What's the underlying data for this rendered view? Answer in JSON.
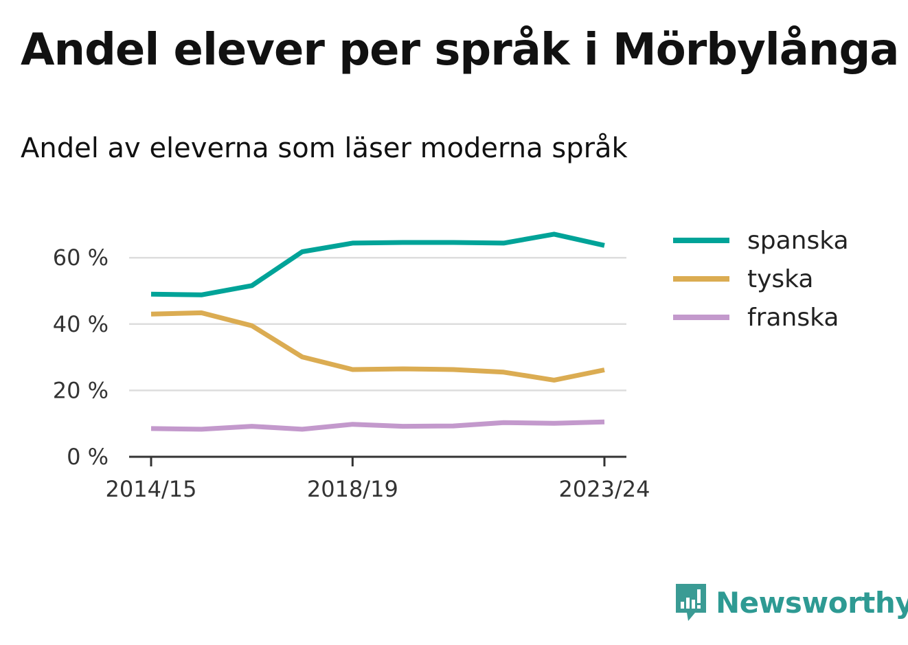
{
  "title": "Andel elever per språk i Mörbylånga",
  "subtitle": "Andel av eleverna som läser moderna språk",
  "brand": {
    "name": "Newsworthy",
    "color": "#3a9b94",
    "icon": "newsworthy-logo-icon"
  },
  "chart_data": {
    "type": "line",
    "categories": [
      "2014/15",
      "2015/16",
      "2016/17",
      "2017/18",
      "2018/19",
      "2019/20",
      "2020/21",
      "2021/22",
      "2022/23",
      "2023/24"
    ],
    "x_tick_labels": [
      "2014/15",
      "2018/19",
      "2023/24"
    ],
    "y_ticks": [
      0,
      20,
      40,
      60
    ],
    "y_tick_labels": [
      "0 %",
      "20 %",
      "40 %",
      "60 %"
    ],
    "ylim": [
      0,
      70
    ],
    "grid": true,
    "legend_position": "right",
    "series": [
      {
        "name": "spanska",
        "color": "#00a398",
        "values": [
          49,
          48.8,
          51.6,
          61.8,
          64.4,
          64.6,
          64.6,
          64.4,
          67.1,
          63.7
        ]
      },
      {
        "name": "tyska",
        "color": "#dbac52",
        "values": [
          43,
          43.4,
          39.5,
          30.1,
          26.3,
          26.5,
          26.3,
          25.5,
          23.1,
          26.2
        ]
      },
      {
        "name": "franska",
        "color": "#c399cc",
        "values": [
          8.5,
          8.3,
          9.2,
          8.3,
          9.8,
          9.2,
          9.3,
          10.3,
          10.1,
          10.5
        ]
      }
    ]
  }
}
